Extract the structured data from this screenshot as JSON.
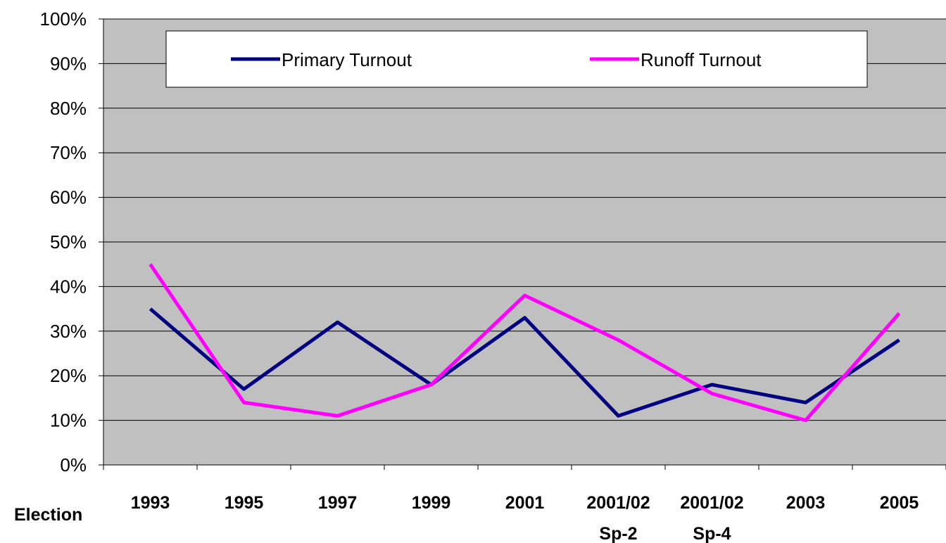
{
  "chart_data": {
    "type": "line",
    "x_label": "Election",
    "categories": [
      "1993",
      "1995",
      "1997",
      "1999",
      "2001",
      "2001/02\nSp-2",
      "2001/02\nSp-4",
      "2003",
      "2005"
    ],
    "series": [
      {
        "name": "Primary Turnout",
        "color": "#000080",
        "values": [
          35,
          17,
          32,
          18,
          33,
          11,
          18,
          14,
          28
        ]
      },
      {
        "name": "Runoff Turnout",
        "color": "#ff00ff",
        "values": [
          45,
          14,
          11,
          18,
          38,
          28,
          16,
          10,
          34
        ]
      }
    ],
    "ylim": [
      0,
      100
    ],
    "yticks": [
      {
        "value": 0,
        "label": "0%"
      },
      {
        "value": 10,
        "label": "10%"
      },
      {
        "value": 20,
        "label": "20%"
      },
      {
        "value": 30,
        "label": "30%"
      },
      {
        "value": 40,
        "label": "40%"
      },
      {
        "value": 50,
        "label": "50%"
      },
      {
        "value": 60,
        "label": "60%"
      },
      {
        "value": 70,
        "label": "70%"
      },
      {
        "value": 80,
        "label": "80%"
      },
      {
        "value": 90,
        "label": "90%"
      },
      {
        "value": 100,
        "label": "100%"
      }
    ],
    "grid": true,
    "plot_background": "#c0c0c0"
  }
}
